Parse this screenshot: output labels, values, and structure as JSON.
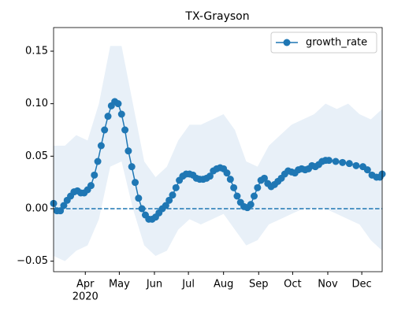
{
  "chart_data": {
    "type": "line",
    "title": "TX-Grayson",
    "x": [
      64,
      67,
      70,
      73,
      76,
      79,
      82,
      85,
      88,
      91,
      94,
      97,
      100,
      103,
      106,
      109,
      112,
      115,
      118,
      121,
      124,
      127,
      130,
      133,
      136,
      139,
      142,
      145,
      148,
      151,
      154,
      157,
      160,
      163,
      166,
      169,
      172,
      175,
      178,
      181,
      184,
      187,
      190,
      193,
      196,
      199,
      202,
      205,
      208,
      211,
      214,
      217,
      220,
      223,
      226,
      229,
      232,
      235,
      238,
      241,
      244,
      247,
      250,
      253,
      256,
      259,
      262,
      265,
      268,
      271,
      274,
      277,
      280,
      283,
      286,
      289,
      292,
      295,
      298,
      301,
      304,
      307,
      313,
      319,
      325,
      331,
      337,
      341,
      345,
      349,
      352,
      354
    ],
    "series": [
      {
        "name": "growth_rate",
        "color": "#1f77b4",
        "values": [
          0.005,
          -0.002,
          -0.002,
          0.003,
          0.008,
          0.012,
          0.016,
          0.017,
          0.015,
          0.015,
          0.018,
          0.022,
          0.032,
          0.045,
          0.06,
          0.075,
          0.088,
          0.098,
          0.102,
          0.1,
          0.09,
          0.075,
          0.055,
          0.04,
          0.025,
          0.01,
          0.0,
          -0.006,
          -0.01,
          -0.01,
          -0.008,
          -0.004,
          0.0,
          0.003,
          0.008,
          0.013,
          0.02,
          0.027,
          0.031,
          0.033,
          0.033,
          0.032,
          0.029,
          0.028,
          0.028,
          0.029,
          0.031,
          0.036,
          0.038,
          0.039,
          0.038,
          0.034,
          0.028,
          0.02,
          0.012,
          0.006,
          0.002,
          0.001,
          0.004,
          0.012,
          0.02,
          0.027,
          0.029,
          0.024,
          0.021,
          0.023,
          0.026,
          0.029,
          0.033,
          0.036,
          0.035,
          0.034,
          0.037,
          0.038,
          0.037,
          0.038,
          0.041,
          0.04,
          0.042,
          0.045,
          0.046,
          0.046,
          0.045,
          0.044,
          0.043,
          0.041,
          0.04,
          0.037,
          0.032,
          0.03,
          0.03,
          0.033
        ]
      }
    ],
    "band": {
      "color": "#e8f0f8",
      "x": [
        64,
        74,
        84,
        94,
        104,
        114,
        124,
        134,
        144,
        154,
        164,
        174,
        184,
        194,
        204,
        214,
        224,
        234,
        244,
        254,
        264,
        274,
        284,
        294,
        304,
        314,
        324,
        334,
        344,
        354
      ],
      "upper": [
        0.06,
        0.06,
        0.07,
        0.065,
        0.1,
        0.155,
        0.155,
        0.1,
        0.045,
        0.03,
        0.04,
        0.065,
        0.08,
        0.08,
        0.085,
        0.09,
        0.075,
        0.045,
        0.04,
        0.06,
        0.07,
        0.08,
        0.085,
        0.09,
        0.1,
        0.095,
        0.1,
        0.09,
        0.085,
        0.095
      ],
      "lower": [
        -0.045,
        -0.05,
        -0.04,
        -0.035,
        -0.01,
        0.04,
        0.045,
        0.0,
        -0.035,
        -0.045,
        -0.04,
        -0.02,
        -0.01,
        -0.015,
        -0.01,
        -0.005,
        -0.02,
        -0.035,
        -0.03,
        -0.015,
        -0.01,
        -0.005,
        0.0,
        0.0,
        0.0,
        -0.005,
        -0.01,
        -0.015,
        -0.03,
        -0.04
      ]
    },
    "hline": 0,
    "xlim": [
      64,
      354
    ],
    "xticks": [
      {
        "value": 92,
        "label": "Apr"
      },
      {
        "value": 122,
        "label": "May"
      },
      {
        "value": 153,
        "label": "Jun"
      },
      {
        "value": 183,
        "label": "Jul"
      },
      {
        "value": 214,
        "label": "Aug"
      },
      {
        "value": 245,
        "label": "Sep"
      },
      {
        "value": 275,
        "label": "Oct"
      },
      {
        "value": 306,
        "label": "Nov"
      },
      {
        "value": 336,
        "label": "Dec"
      }
    ],
    "year_label": "2020",
    "ylim": [
      -0.06,
      0.1725
    ],
    "yticks": [
      -0.05,
      0.0,
      0.05,
      0.1,
      0.15
    ],
    "ytick_labels": [
      "−0.05",
      "0.00",
      "0.05",
      "0.10",
      "0.15"
    ],
    "legend": "upper right"
  }
}
